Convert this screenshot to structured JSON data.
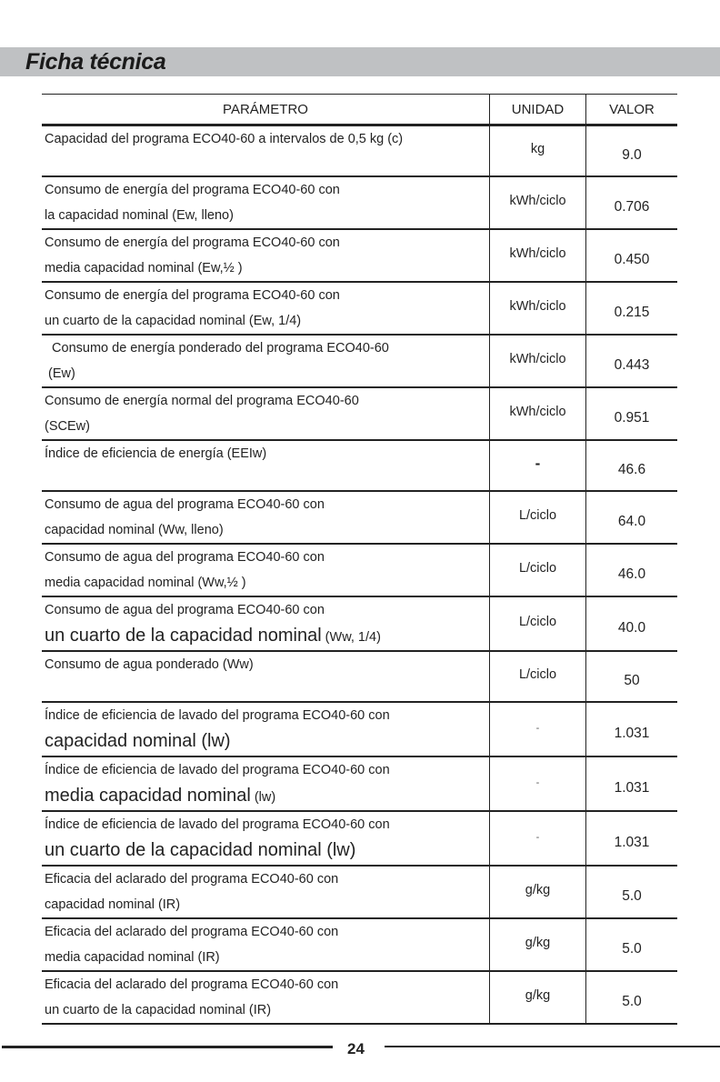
{
  "title": "Ficha técnica",
  "headers": [
    "PARÁMETRO",
    "UNIDAD",
    "VALOR"
  ],
  "rows": [
    {
      "l1": "Capacidad del programa ECO40-60 a intervalos de 0,5 kg (c)",
      "l2": "",
      "big": "",
      "small": "",
      "unit": "kg",
      "value": "9.0"
    },
    {
      "l1": "Consumo de energía del programa ECO40-60 con",
      "l2": "la capacidad nominal (Ew, lleno)",
      "big": "",
      "small": "",
      "unit": "kWh/ciclo",
      "value": "0.706"
    },
    {
      "l1": "Consumo de energía del programa ECO40-60 con",
      "l2": "media capacidad nominal (Ew,½ )",
      "big": "",
      "small": "",
      "unit": "kWh/ciclo",
      "value": "0.450"
    },
    {
      "l1": "Consumo de energía del programa ECO40-60 con",
      "l2": "un cuarto de la capacidad nominal (Ew, 1/4)",
      "big": "",
      "small": "",
      "unit": "kWh/ciclo",
      "value": "0.215"
    },
    {
      "l1": "  Consumo de energía ponderado del programa ECO40-60",
      "l2": " (Ew)",
      "big": "",
      "small": "",
      "unit": "kWh/ciclo",
      "value": "0.443"
    },
    {
      "l1": "Consumo de energía normal del programa ECO40-60",
      "l2": "(SCEw)",
      "big": "",
      "small": "",
      "unit": "kWh/ciclo",
      "value": "0.951"
    },
    {
      "l1": "Índice de eficiencia de energía (EEIw)",
      "l2": "",
      "big": "",
      "small": "",
      "unit": "-",
      "value": "46.6"
    },
    {
      "l1": "Consumo de agua del programa ECO40-60 con",
      "l2": "capacidad nominal (Ww, lleno)",
      "big": "",
      "small": "",
      "unit": "L/ciclo",
      "value": "64.0"
    },
    {
      "l1": "Consumo de agua del programa ECO40-60 con",
      "l2": "media capacidad nominal (Ww,½ )",
      "big": "",
      "small": "",
      "unit": "L/ciclo",
      "value": "46.0"
    },
    {
      "l1": "Consumo de agua del programa ECO40-60 con",
      "l2": "",
      "big": "un cuarto de la capacidad nominal",
      "small": " (Ww, 1/4)",
      "unit": "L/ciclo",
      "value": "40.0"
    },
    {
      "l1": "Consumo de agua ponderado (Ww)",
      "l2": "",
      "big": "",
      "small": "",
      "unit": "L/ciclo",
      "value": "50"
    },
    {
      "l1": "Índice de eficiencia de lavado del programa ECO40-60 con",
      "l2": "",
      "big": "capacidad nominal (lw)",
      "small": "",
      "unit": "-",
      "value": "1.031"
    },
    {
      "l1": "Índice de eficiencia de lavado del programa ECO40-60 con",
      "l2": "",
      "big": "media capacidad nominal",
      "small": " (lw)",
      "unit": "-",
      "value": "1.031"
    },
    {
      "l1": "Índice de eficiencia de lavado del programa ECO40-60 con",
      "l2": "",
      "big": "un cuarto de la capacidad nominal (lw)",
      "small": "",
      "unit": "-",
      "value": "1.031"
    },
    {
      "l1": "Eficacia del aclarado del programa ECO40-60 con",
      "l2": "capacidad nominal (IR)",
      "big": "",
      "small": "",
      "unit": "g/kg",
      "value": "5.0"
    },
    {
      "l1": "Eficacia del aclarado del programa ECO40-60 con",
      "l2": "media capacidad nominal (IR)",
      "big": "",
      "small": "",
      "unit": "g/kg",
      "value": "5.0"
    },
    {
      "l1": "Eficacia del aclarado del programa ECO40-60 con",
      "l2": "un cuarto de la capacidad nominal (IR)",
      "big": "",
      "small": "",
      "unit": "g/kg",
      "value": "5.0"
    }
  ],
  "page_number": "24"
}
